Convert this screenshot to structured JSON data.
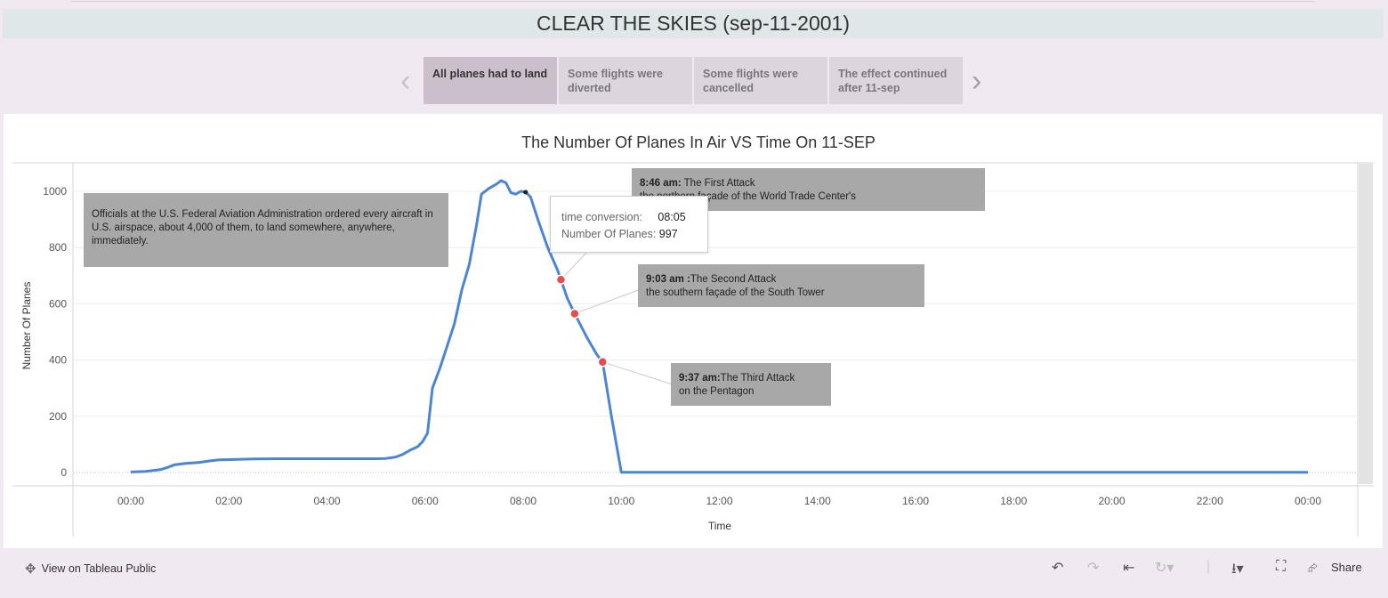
{
  "page_title": "CLEAR THE SKIES (sep-11-2001)",
  "story_points": [
    {
      "label": "All planes had to land",
      "active": true
    },
    {
      "label": "Some flights were diverted",
      "active": false
    },
    {
      "label": "Some flights were cancelled",
      "active": false
    },
    {
      "label": "The effect continued after 11-sep",
      "active": false
    }
  ],
  "nav": {
    "prev_icon": "chevron-left-icon",
    "next_icon": "chevron-right-icon"
  },
  "chart_data": {
    "type": "line",
    "title": "The Number Of Planes In Air VS Time On 11-SEP",
    "xlabel": "Time",
    "ylabel": "Number Of Planes",
    "x_ticks": [
      "00:00",
      "02:00",
      "04:00",
      "06:00",
      "08:00",
      "10:00",
      "12:00",
      "14:00",
      "16:00",
      "18:00",
      "20:00",
      "22:00",
      "00:00"
    ],
    "y_ticks": [
      0,
      200,
      400,
      600,
      800,
      1000
    ],
    "xlim_hours": [
      0,
      24
    ],
    "ylim": [
      -50,
      1100
    ],
    "grid": "horizontal",
    "color": "#4a86d4",
    "series": [
      {
        "values": [
          [
            0.0,
            2
          ],
          [
            0.3,
            4
          ],
          [
            0.6,
            10
          ],
          [
            0.75,
            18
          ],
          [
            0.9,
            28
          ],
          [
            1.1,
            32
          ],
          [
            1.4,
            36
          ],
          [
            1.6,
            41
          ],
          [
            1.8,
            45
          ],
          [
            2.0,
            46
          ],
          [
            2.5,
            48
          ],
          [
            3.0,
            49
          ],
          [
            3.5,
            49
          ],
          [
            4.0,
            49
          ],
          [
            4.5,
            49
          ],
          [
            5.0,
            49
          ],
          [
            5.2,
            50
          ],
          [
            5.4,
            55
          ],
          [
            5.55,
            65
          ],
          [
            5.7,
            80
          ],
          [
            5.85,
            92
          ],
          [
            5.95,
            110
          ],
          [
            6.05,
            140
          ],
          [
            6.15,
            300
          ],
          [
            6.3,
            370
          ],
          [
            6.45,
            450
          ],
          [
            6.6,
            530
          ],
          [
            6.75,
            650
          ],
          [
            6.9,
            740
          ],
          [
            7.05,
            880
          ],
          [
            7.15,
            990
          ],
          [
            7.3,
            1010
          ],
          [
            7.45,
            1025
          ],
          [
            7.55,
            1038
          ],
          [
            7.65,
            1030
          ],
          [
            7.75,
            995
          ],
          [
            7.85,
            990
          ],
          [
            7.95,
            1000
          ],
          [
            8.05,
            997
          ],
          [
            8.15,
            980
          ],
          [
            8.3,
            900
          ],
          [
            8.5,
            800
          ],
          [
            8.7,
            720
          ],
          [
            8.77,
            686
          ],
          [
            8.9,
            620
          ],
          [
            9.05,
            565
          ],
          [
            9.3,
            480
          ],
          [
            9.5,
            420
          ],
          [
            9.62,
            393
          ],
          [
            9.8,
            200
          ],
          [
            10.0,
            1
          ],
          [
            12.0,
            1
          ],
          [
            16.0,
            1
          ],
          [
            20.0,
            1
          ],
          [
            24.0,
            1
          ]
        ]
      }
    ],
    "highlight_points": [
      {
        "x": 8.77,
        "y": 686,
        "label_time": "8:46 am"
      },
      {
        "x": 9.05,
        "y": 565,
        "label_time": "9:03 am"
      },
      {
        "x": 9.62,
        "y": 393,
        "label_time": "9:37 am"
      }
    ],
    "annotations": [
      {
        "text": "Officials at the U.S. Federal Aviation Administration ordered every aircraft in U.S. airspace, about 4,000 of them,  to land somewhere, anywhere, immediately."
      },
      {
        "bold": "8:46 am:",
        "title": " The First Attack",
        "body": "the northern façade of the World Trade Center's"
      },
      {
        "bold": "9:03 am :",
        "title": "The Second Attack",
        "body": "the southern façade of the South Tower"
      },
      {
        "bold": "9:37 am:",
        "title": "The Third Attack",
        "body": "on the Pentagon"
      }
    ],
    "tooltip": {
      "field1_label": "time conversion:",
      "field1_value": "08:05",
      "field2_label": "Number Of Planes:",
      "field2_value": "997"
    }
  },
  "footer": {
    "view_link": "View on Tableau Public",
    "share_label": "Share",
    "icons": [
      "tableau-logo-icon",
      "undo-icon",
      "redo-icon",
      "revert-icon",
      "refresh-icon",
      "download-icon",
      "fullscreen-icon",
      "share-icon"
    ]
  }
}
